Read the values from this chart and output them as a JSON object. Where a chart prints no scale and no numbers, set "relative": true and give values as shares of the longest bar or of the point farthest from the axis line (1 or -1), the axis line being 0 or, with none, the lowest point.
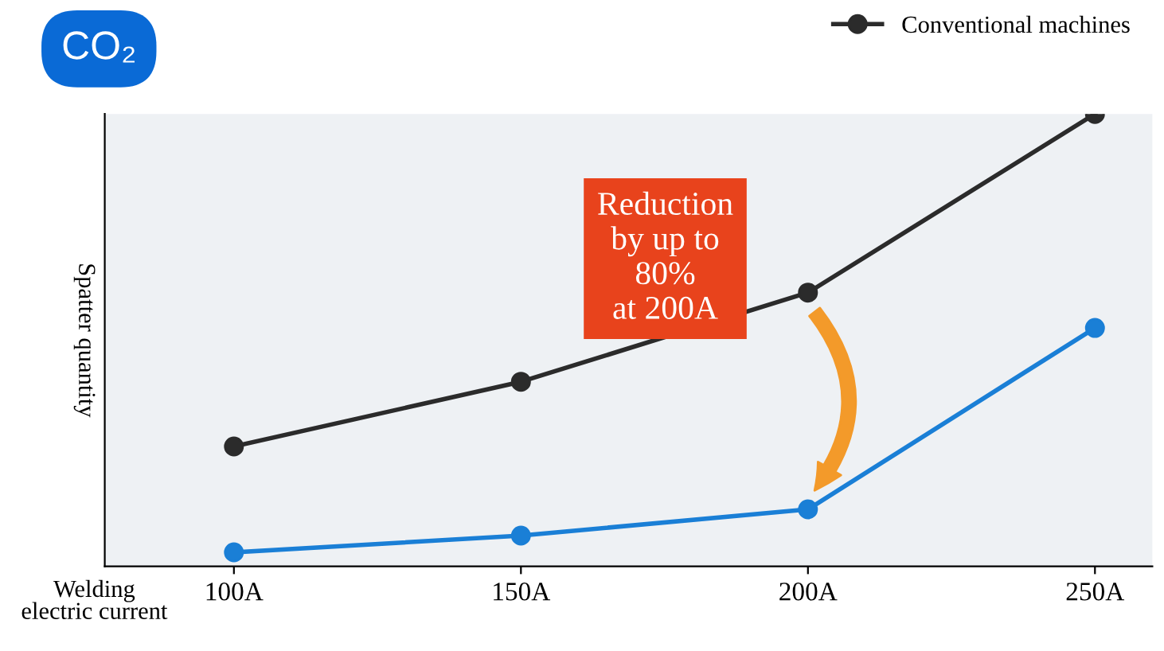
{
  "chart_data": {
    "type": "line",
    "title": "CO₂",
    "xlabel": "Welding electric current",
    "ylabel": "Spatter quantity",
    "categories": [
      "100A",
      "150A",
      "200A",
      "250A"
    ],
    "relative": true,
    "marker": "circle",
    "line_style": "solid",
    "legend": "top right",
    "grid": false,
    "series": [
      {
        "name": "Conventional machines",
        "color": "#2b2b2b",
        "values": [
          0.265,
          0.408,
          0.605,
          1
        ]
      },
      {
        "color": "#1a7fd6",
        "values": [
          0.031,
          0.068,
          0.126,
          0.527
        ]
      }
    ],
    "annotations": [
      "Reduction\nby up to\n80%\nat 200A"
    ]
  }
}
